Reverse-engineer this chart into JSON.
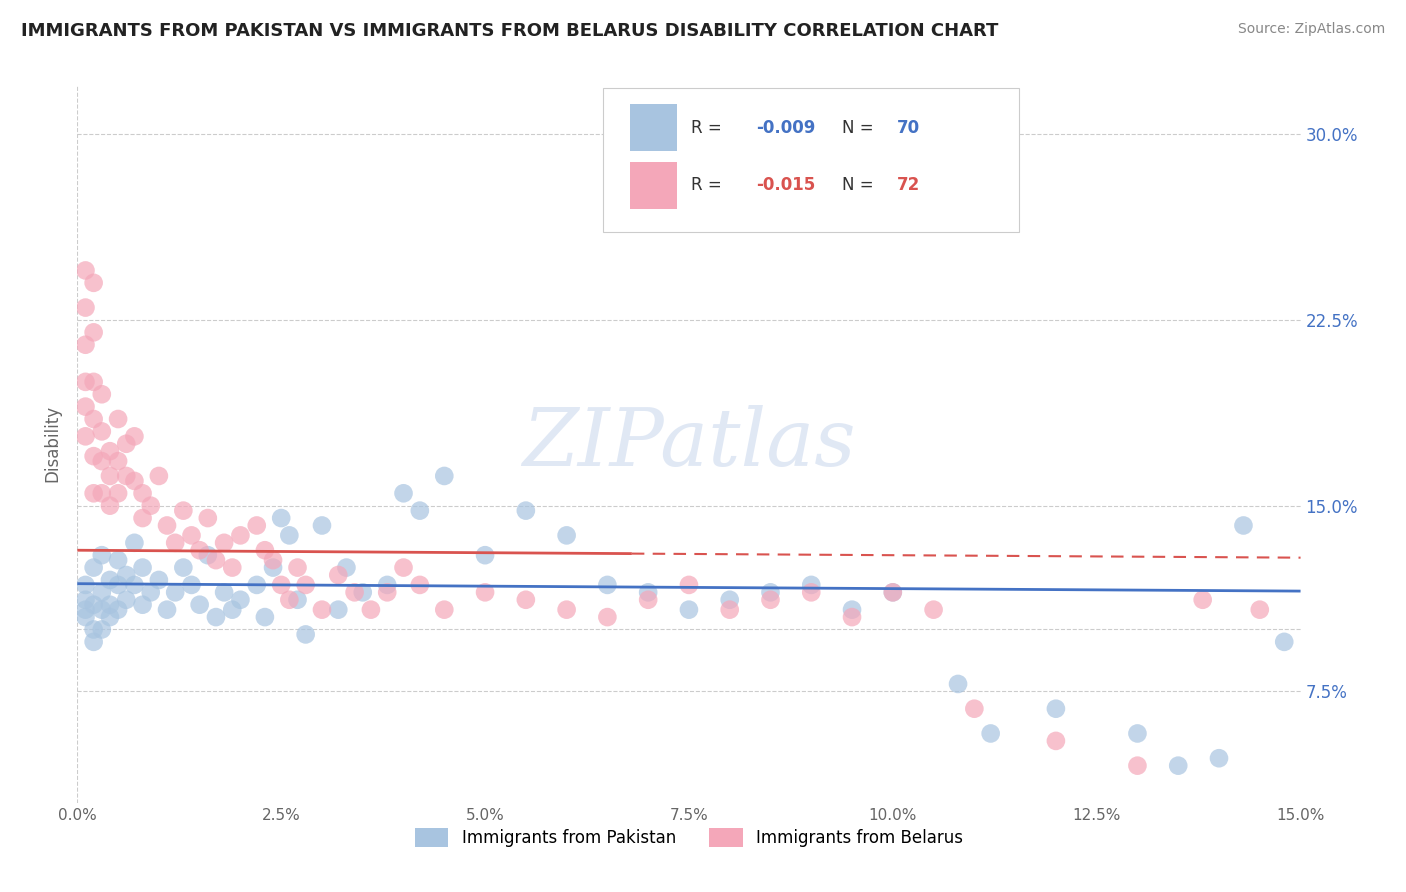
{
  "title": "IMMIGRANTS FROM PAKISTAN VS IMMIGRANTS FROM BELARUS DISABILITY CORRELATION CHART",
  "source": "Source: ZipAtlas.com",
  "ylabel": "Disability",
  "xlim": [
    0.0,
    0.15
  ],
  "ylim": [
    0.03,
    0.32
  ],
  "y_tick_vals": [
    0.075,
    0.1,
    0.15,
    0.225,
    0.3
  ],
  "y_tick_labels": [
    "7.5%",
    "",
    "15.0%",
    "22.5%",
    "30.0%"
  ],
  "r_pakistan": -0.009,
  "n_pakistan": 70,
  "r_belarus": -0.015,
  "n_belarus": 72,
  "color_pakistan": "#a8c4e0",
  "color_belarus": "#f4a7b9",
  "line_color_pakistan": "#4472c4",
  "line_color_belarus": "#d9534f",
  "pakistan_scatter": [
    [
      0.001,
      0.118
    ],
    [
      0.001,
      0.112
    ],
    [
      0.001,
      0.108
    ],
    [
      0.001,
      0.105
    ],
    [
      0.002,
      0.125
    ],
    [
      0.002,
      0.11
    ],
    [
      0.002,
      0.1
    ],
    [
      0.002,
      0.095
    ],
    [
      0.003,
      0.13
    ],
    [
      0.003,
      0.115
    ],
    [
      0.003,
      0.108
    ],
    [
      0.003,
      0.1
    ],
    [
      0.004,
      0.12
    ],
    [
      0.004,
      0.11
    ],
    [
      0.004,
      0.105
    ],
    [
      0.005,
      0.128
    ],
    [
      0.005,
      0.118
    ],
    [
      0.005,
      0.108
    ],
    [
      0.006,
      0.122
    ],
    [
      0.006,
      0.112
    ],
    [
      0.007,
      0.135
    ],
    [
      0.007,
      0.118
    ],
    [
      0.008,
      0.125
    ],
    [
      0.008,
      0.11
    ],
    [
      0.009,
      0.115
    ],
    [
      0.01,
      0.12
    ],
    [
      0.011,
      0.108
    ],
    [
      0.012,
      0.115
    ],
    [
      0.013,
      0.125
    ],
    [
      0.014,
      0.118
    ],
    [
      0.015,
      0.11
    ],
    [
      0.016,
      0.13
    ],
    [
      0.017,
      0.105
    ],
    [
      0.018,
      0.115
    ],
    [
      0.019,
      0.108
    ],
    [
      0.02,
      0.112
    ],
    [
      0.022,
      0.118
    ],
    [
      0.023,
      0.105
    ],
    [
      0.024,
      0.125
    ],
    [
      0.025,
      0.145
    ],
    [
      0.026,
      0.138
    ],
    [
      0.027,
      0.112
    ],
    [
      0.028,
      0.098
    ],
    [
      0.03,
      0.142
    ],
    [
      0.032,
      0.108
    ],
    [
      0.033,
      0.125
    ],
    [
      0.035,
      0.115
    ],
    [
      0.038,
      0.118
    ],
    [
      0.04,
      0.155
    ],
    [
      0.042,
      0.148
    ],
    [
      0.045,
      0.162
    ],
    [
      0.05,
      0.13
    ],
    [
      0.055,
      0.148
    ],
    [
      0.06,
      0.138
    ],
    [
      0.065,
      0.118
    ],
    [
      0.07,
      0.115
    ],
    [
      0.075,
      0.108
    ],
    [
      0.08,
      0.112
    ],
    [
      0.085,
      0.115
    ],
    [
      0.09,
      0.118
    ],
    [
      0.095,
      0.108
    ],
    [
      0.1,
      0.115
    ],
    [
      0.108,
      0.078
    ],
    [
      0.112,
      0.058
    ],
    [
      0.12,
      0.068
    ],
    [
      0.13,
      0.058
    ],
    [
      0.135,
      0.045
    ],
    [
      0.14,
      0.048
    ],
    [
      0.143,
      0.142
    ],
    [
      0.148,
      0.095
    ]
  ],
  "belarus_scatter": [
    [
      0.001,
      0.245
    ],
    [
      0.001,
      0.23
    ],
    [
      0.001,
      0.215
    ],
    [
      0.001,
      0.2
    ],
    [
      0.001,
      0.19
    ],
    [
      0.001,
      0.178
    ],
    [
      0.002,
      0.24
    ],
    [
      0.002,
      0.22
    ],
    [
      0.002,
      0.2
    ],
    [
      0.002,
      0.185
    ],
    [
      0.002,
      0.17
    ],
    [
      0.002,
      0.155
    ],
    [
      0.003,
      0.195
    ],
    [
      0.003,
      0.18
    ],
    [
      0.003,
      0.168
    ],
    [
      0.003,
      0.155
    ],
    [
      0.004,
      0.172
    ],
    [
      0.004,
      0.162
    ],
    [
      0.004,
      0.15
    ],
    [
      0.005,
      0.185
    ],
    [
      0.005,
      0.168
    ],
    [
      0.005,
      0.155
    ],
    [
      0.006,
      0.175
    ],
    [
      0.006,
      0.162
    ],
    [
      0.007,
      0.178
    ],
    [
      0.007,
      0.16
    ],
    [
      0.008,
      0.155
    ],
    [
      0.008,
      0.145
    ],
    [
      0.009,
      0.15
    ],
    [
      0.01,
      0.162
    ],
    [
      0.011,
      0.142
    ],
    [
      0.012,
      0.135
    ],
    [
      0.013,
      0.148
    ],
    [
      0.014,
      0.138
    ],
    [
      0.015,
      0.132
    ],
    [
      0.016,
      0.145
    ],
    [
      0.017,
      0.128
    ],
    [
      0.018,
      0.135
    ],
    [
      0.019,
      0.125
    ],
    [
      0.02,
      0.138
    ],
    [
      0.022,
      0.142
    ],
    [
      0.023,
      0.132
    ],
    [
      0.024,
      0.128
    ],
    [
      0.025,
      0.118
    ],
    [
      0.026,
      0.112
    ],
    [
      0.027,
      0.125
    ],
    [
      0.028,
      0.118
    ],
    [
      0.03,
      0.108
    ],
    [
      0.032,
      0.122
    ],
    [
      0.034,
      0.115
    ],
    [
      0.036,
      0.108
    ],
    [
      0.038,
      0.115
    ],
    [
      0.04,
      0.125
    ],
    [
      0.042,
      0.118
    ],
    [
      0.045,
      0.108
    ],
    [
      0.05,
      0.115
    ],
    [
      0.055,
      0.112
    ],
    [
      0.06,
      0.108
    ],
    [
      0.065,
      0.105
    ],
    [
      0.07,
      0.112
    ],
    [
      0.075,
      0.118
    ],
    [
      0.08,
      0.108
    ],
    [
      0.085,
      0.112
    ],
    [
      0.09,
      0.115
    ],
    [
      0.095,
      0.105
    ],
    [
      0.1,
      0.115
    ],
    [
      0.105,
      0.108
    ],
    [
      0.11,
      0.068
    ],
    [
      0.12,
      0.055
    ],
    [
      0.13,
      0.045
    ],
    [
      0.138,
      0.112
    ],
    [
      0.145,
      0.108
    ]
  ],
  "pak_line": [
    [
      0.0,
      0.1185
    ],
    [
      0.15,
      0.1155
    ]
  ],
  "bel_line": [
    [
      0.0,
      0.132
    ],
    [
      0.15,
      0.129
    ]
  ]
}
